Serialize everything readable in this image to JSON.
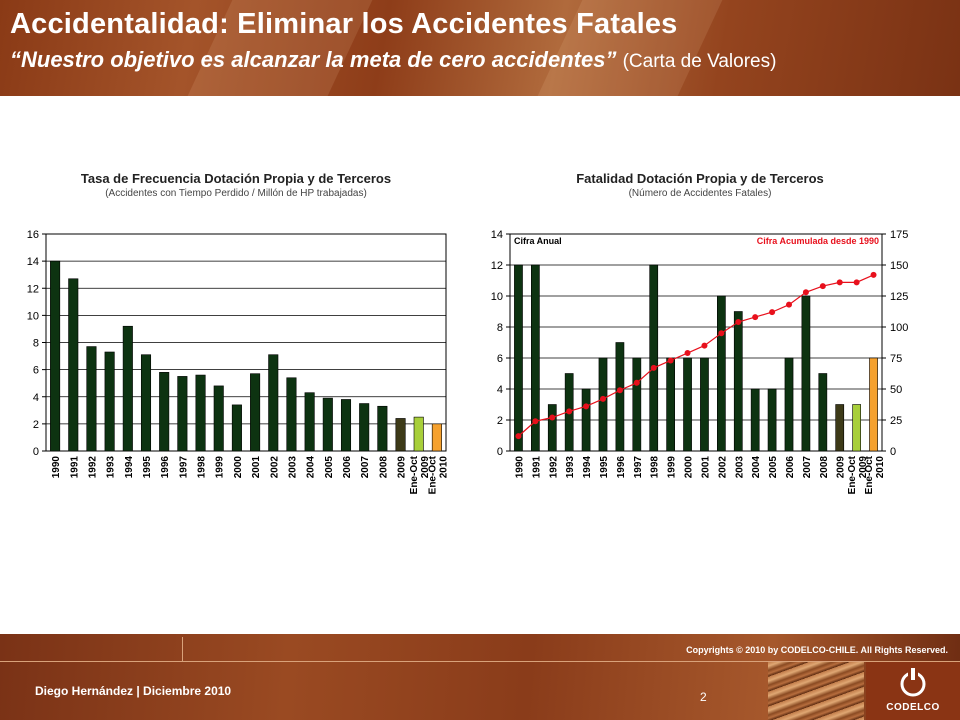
{
  "header": {
    "title": "Accidentalidad: Eliminar los Accidentes Fatales",
    "subtitle_quote": "“Nuestro objetivo es alcanzar la meta de cero accidentes”",
    "subtitle_paren": "(Carta de Valores)"
  },
  "colors": {
    "bar_main": "#0d3311",
    "bar_2009": "#3d3a18",
    "bar_2009_ytd": "#a8cf3a",
    "bar_2010_ytd": "#f5a12e",
    "cumulative_line": "#e8101c"
  },
  "footer": {
    "copyright": "Copyrights © 2010 by CODELCO-CHILE.  All Rights Reserved.",
    "presenter": "Diego Hernández | Diciembre 2010",
    "page": "2",
    "logo": "CODELCO"
  },
  "chart_data": [
    {
      "type": "bar",
      "title": "Tasa de Frecuencia Dotación Propia y de Terceros",
      "subtitle": "(Accidentes con Tiempo Perdido / Millón de HP trabajadas)",
      "categories": [
        "1990",
        "1991",
        "1992",
        "1993",
        "1994",
        "1995",
        "1996",
        "1997",
        "1998",
        "1999",
        "2000",
        "2001",
        "2002",
        "2003",
        "2004",
        "2005",
        "2006",
        "2007",
        "2008",
        "2009",
        "Ene-Oct 2009",
        "Ene-Oct 2010"
      ],
      "values": [
        14.0,
        12.7,
        7.7,
        7.3,
        9.2,
        7.1,
        5.8,
        5.5,
        5.6,
        4.8,
        3.4,
        5.7,
        7.1,
        5.4,
        4.3,
        3.9,
        3.8,
        3.5,
        3.3,
        2.4,
        2.5,
        2.0
      ],
      "ylim": [
        0,
        16
      ],
      "yticks": [
        0,
        2,
        4,
        6,
        8,
        10,
        12,
        14,
        16
      ],
      "grid": true
    },
    {
      "type": "bar",
      "title": "Fatalidad Dotación Propia y de Terceros",
      "subtitle": "(Número de Accidentes Fatales)",
      "categories": [
        "1990",
        "1991",
        "1992",
        "1993",
        "1994",
        "1995",
        "1996",
        "1997",
        "1998",
        "1999",
        "2000",
        "2001",
        "2002",
        "2003",
        "2004",
        "2005",
        "2006",
        "2007",
        "2008",
        "2009",
        "Ene-Oct 2009",
        "Ene-Oct 2010"
      ],
      "left_axis_label": "Cifra Anual",
      "right_axis_label": "Cifra Acumulada desde 1990",
      "series": [
        {
          "type": "bar",
          "axis": "left",
          "values": [
            12,
            12,
            3,
            5,
            4,
            6,
            7,
            6,
            12,
            6,
            6,
            6,
            10,
            9,
            4,
            4,
            6,
            10,
            5,
            3,
            3,
            6
          ]
        },
        {
          "type": "line",
          "axis": "right",
          "values": [
            12,
            24,
            27,
            32,
            36,
            42,
            49,
            55,
            67,
            73,
            79,
            85,
            95,
            104,
            108,
            112,
            118,
            128,
            133,
            136,
            136,
            142
          ]
        }
      ],
      "ylim_left": [
        0,
        14
      ],
      "yticks_left": [
        0,
        2,
        4,
        6,
        8,
        10,
        12,
        14
      ],
      "ylim_right": [
        0,
        175
      ],
      "yticks_right": [
        0,
        25,
        50,
        75,
        100,
        125,
        150,
        175
      ],
      "grid": true
    }
  ]
}
